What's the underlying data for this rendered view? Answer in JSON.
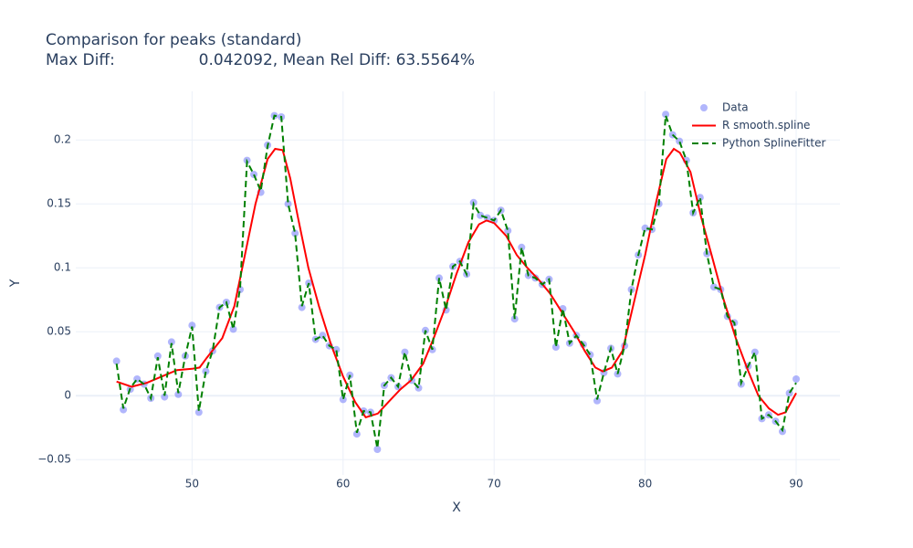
{
  "chart_data": {
    "type": "line",
    "title": "Comparison for peaks (standard)",
    "subtitle": "Max Diff:                 0.042092, Mean Rel Diff: 63.5564%",
    "x_label": "X",
    "y_label": "Y",
    "x": [
      45,
      45.45,
      45.91,
      46.36,
      46.82,
      47.27,
      47.73,
      48.18,
      48.64,
      49.09,
      49.55,
      50,
      50.45,
      50.91,
      51.36,
      51.82,
      52.27,
      52.73,
      53.18,
      53.64,
      54.09,
      54.55,
      55,
      55.45,
      55.91,
      56.36,
      56.82,
      57.27,
      57.73,
      58.18,
      58.64,
      59.09,
      59.55,
      60,
      60.45,
      60.91,
      61.36,
      61.82,
      62.27,
      62.73,
      63.18,
      63.64,
      64.09,
      64.55,
      65,
      65.45,
      65.91,
      66.36,
      66.82,
      67.27,
      67.73,
      68.18,
      68.64,
      69.09,
      69.55,
      70,
      70.45,
      70.91,
      71.36,
      71.82,
      72.27,
      72.73,
      73.18,
      73.64,
      74.09,
      74.55,
      75,
      75.45,
      75.91,
      76.36,
      76.82,
      77.27,
      77.73,
      78.18,
      78.64,
      79.09,
      79.55,
      80,
      80.45,
      80.91,
      81.36,
      81.82,
      82.27,
      82.73,
      83.18,
      83.64,
      84.09,
      84.55,
      85,
      85.45,
      85.91,
      86.36,
      86.82,
      87.27,
      87.73,
      88.18,
      88.64,
      89.09,
      89.55,
      90
    ],
    "series": [
      {
        "name": "Data",
        "mode": "markers",
        "color": "#636efa",
        "values": [
          0.027,
          -0.011,
          0.005,
          0.013,
          0.009,
          -0.002,
          0.031,
          -0.001,
          0.042,
          0.001,
          0.031,
          0.055,
          -0.013,
          0.019,
          0.035,
          0.069,
          0.073,
          0.052,
          0.083,
          0.184,
          0.173,
          0.159,
          0.196,
          0.219,
          0.218,
          0.15,
          0.127,
          0.069,
          0.088,
          0.044,
          0.047,
          0.039,
          0.036,
          -0.003,
          0.016,
          -0.03,
          -0.012,
          -0.013,
          -0.042,
          0.008,
          0.014,
          0.007,
          0.034,
          0.012,
          0.006,
          0.051,
          0.036,
          0.092,
          0.067,
          0.101,
          0.105,
          0.095,
          0.151,
          0.141,
          0.139,
          0.137,
          0.145,
          0.129,
          0.06,
          0.116,
          0.094,
          0.092,
          0.087,
          0.091,
          0.038,
          0.068,
          0.041,
          0.047,
          0.04,
          0.032,
          -0.004,
          0.018,
          0.037,
          0.017,
          0.039,
          0.083,
          0.11,
          0.131,
          0.13,
          0.15,
          0.22,
          0.204,
          0.199,
          0.184,
          0.143,
          0.155,
          0.111,
          0.085,
          0.083,
          0.062,
          0.057,
          0.009,
          0.023,
          0.034,
          -0.018,
          -0.015,
          -0.02,
          -0.028,
          0.002,
          0.013
        ]
      },
      {
        "name": "R smooth.spline",
        "mode": "lines",
        "color": "#ff0000",
        "x": [
          45,
          46,
          47,
          48,
          49,
          50,
          50.5,
          51,
          52,
          52.8,
          53.5,
          54.2,
          55,
          55.5,
          56,
          56.5,
          57,
          57.7,
          58.4,
          59.2,
          60,
          60.8,
          61.5,
          62.3,
          63,
          63.8,
          64.5,
          65.3,
          66,
          66.8,
          67.5,
          68.3,
          69,
          69.5,
          70,
          70.8,
          71.5,
          72.2,
          73,
          73.7,
          74.5,
          75.3,
          76,
          76.7,
          77.2,
          77.8,
          78.5,
          79.2,
          80,
          80.7,
          81.4,
          81.9,
          82.3,
          83,
          83.7,
          84.4,
          85.2,
          86,
          86.8,
          87.5,
          88.2,
          88.8,
          89.3,
          90
        ],
        "values": [
          0.011,
          0.007,
          0.01,
          0.015,
          0.02,
          0.021,
          0.022,
          0.03,
          0.045,
          0.07,
          0.11,
          0.15,
          0.185,
          0.193,
          0.192,
          0.17,
          0.14,
          0.1,
          0.07,
          0.04,
          0.015,
          -0.005,
          -0.017,
          -0.014,
          -0.005,
          0.005,
          0.012,
          0.025,
          0.045,
          0.07,
          0.095,
          0.12,
          0.134,
          0.137,
          0.135,
          0.125,
          0.11,
          0.1,
          0.09,
          0.08,
          0.065,
          0.05,
          0.035,
          0.022,
          0.019,
          0.022,
          0.035,
          0.07,
          0.11,
          0.15,
          0.185,
          0.193,
          0.19,
          0.175,
          0.14,
          0.11,
          0.075,
          0.045,
          0.02,
          0,
          -0.01,
          -0.015,
          -0.013,
          0.002
        ]
      },
      {
        "name": "Python SplineFitter",
        "mode": "dashed",
        "color": "#008000",
        "values": [
          0.025,
          -0.01,
          0.006,
          0.013,
          0.009,
          -0.002,
          0.03,
          0,
          0.041,
          0.002,
          0.031,
          0.054,
          -0.012,
          0.019,
          0.035,
          0.069,
          0.073,
          0.052,
          0.084,
          0.183,
          0.173,
          0.16,
          0.195,
          0.219,
          0.218,
          0.15,
          0.127,
          0.07,
          0.088,
          0.044,
          0.047,
          0.039,
          0.036,
          -0.003,
          0.016,
          -0.029,
          -0.012,
          -0.013,
          -0.041,
          0.008,
          0.014,
          0.007,
          0.034,
          0.012,
          0.006,
          0.051,
          0.036,
          0.092,
          0.067,
          0.101,
          0.105,
          0.095,
          0.15,
          0.141,
          0.139,
          0.137,
          0.145,
          0.129,
          0.06,
          0.116,
          0.094,
          0.092,
          0.087,
          0.091,
          0.038,
          0.068,
          0.041,
          0.047,
          0.04,
          0.032,
          -0.003,
          0.018,
          0.037,
          0.017,
          0.039,
          0.083,
          0.11,
          0.131,
          0.13,
          0.15,
          0.219,
          0.204,
          0.199,
          0.184,
          0.143,
          0.155,
          0.111,
          0.085,
          0.083,
          0.062,
          0.057,
          0.01,
          0.023,
          0.034,
          -0.018,
          -0.015,
          -0.02,
          -0.027,
          0.002,
          0.01
        ]
      }
    ],
    "xlim": [
      42.3,
      92.9
    ],
    "ylim": [
      -0.062,
      0.238
    ],
    "xticks": [
      50,
      60,
      70,
      80,
      90
    ],
    "yticks": [
      {
        "value": -0.05,
        "label": "−0.05"
      },
      0,
      0.05,
      0.1,
      0.15,
      0.2
    ],
    "grid": true,
    "legend_position": "top-right"
  }
}
